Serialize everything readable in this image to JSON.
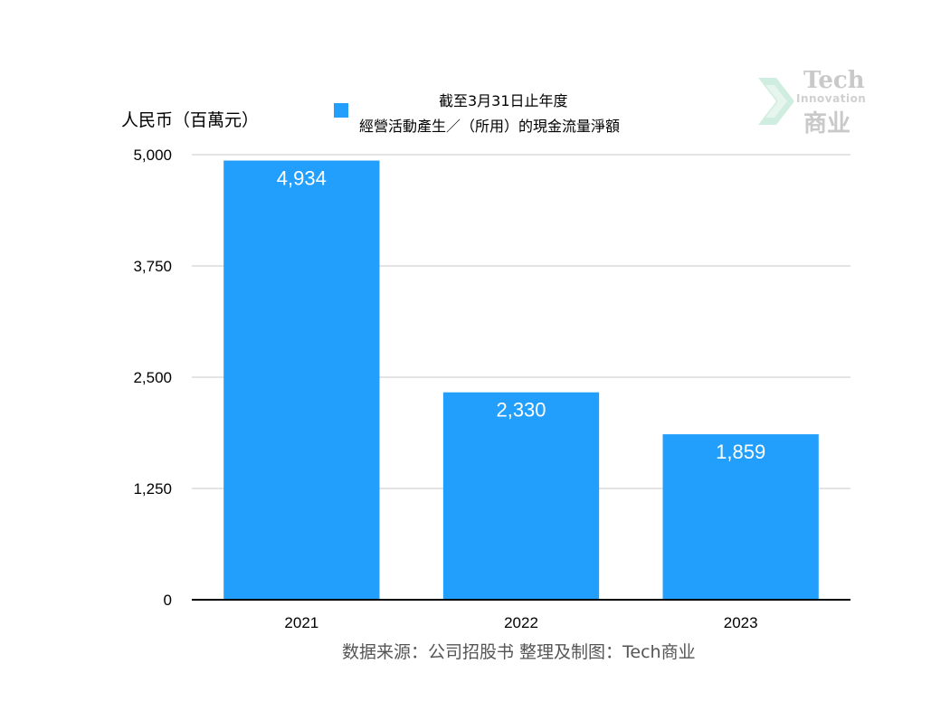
{
  "ylabel": "人民币（百萬元）",
  "legend": {
    "line1": "截至3月31日止年度",
    "line2": "經營活動產生／（所用）的現金流量淨額",
    "color": "#229ffd"
  },
  "source": "数据来源：公司招股书  整理及制图：Tech商业",
  "logo": {
    "tech": "Tech",
    "innovation": "Innovation",
    "cn": "商业",
    "color": "#c9c9c9"
  },
  "chart_data": {
    "type": "bar",
    "categories": [
      "2021",
      "2022",
      "2023"
    ],
    "series": [
      {
        "name": "截至3月31日止年度 經營活動產生／（所用）的現金流量淨額",
        "values": [
          4934,
          2330,
          1859
        ]
      }
    ],
    "value_labels": [
      "4,934",
      "2,330",
      "1,859"
    ],
    "yticks": [
      0,
      1250,
      2500,
      3750,
      5000
    ],
    "ytick_labels": [
      "0",
      "1,250",
      "2,500",
      "3,750",
      "5,000"
    ],
    "ylim": [
      0,
      5000
    ],
    "ylabel": "人民币（百萬元）",
    "xlabel": "",
    "grid": true,
    "legend_position": "top",
    "bar_color": "#229ffd",
    "label_color": "#ffffff"
  }
}
